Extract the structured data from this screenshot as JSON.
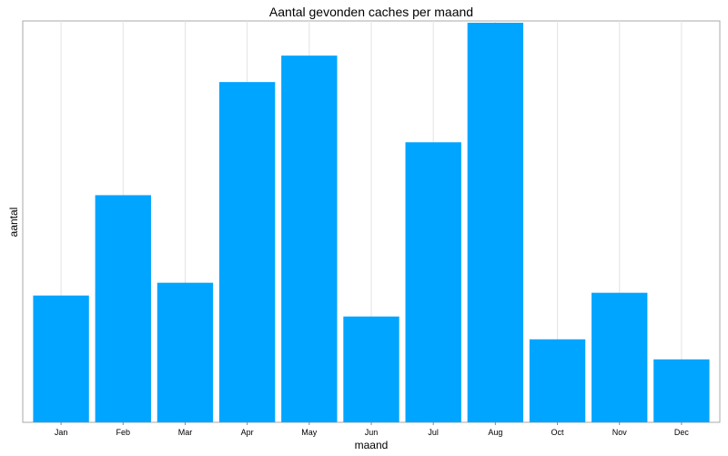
{
  "chart_data": {
    "type": "bar",
    "title": "Aantal gevonden caches per maand",
    "xlabel": "maand",
    "ylabel": "aantal",
    "categories": [
      "Jan",
      "Feb",
      "Mar",
      "Apr",
      "May",
      "Jun",
      "Jul",
      "Aug",
      "Oct",
      "Nov",
      "Dec"
    ],
    "values": [
      139,
      249,
      153,
      373,
      402,
      116,
      307,
      438,
      91,
      142,
      69
    ],
    "ylim": [
      0,
      438
    ],
    "y_tick_labels_shown": false,
    "grid": "vertical",
    "bar_color": "#00a5ff"
  }
}
